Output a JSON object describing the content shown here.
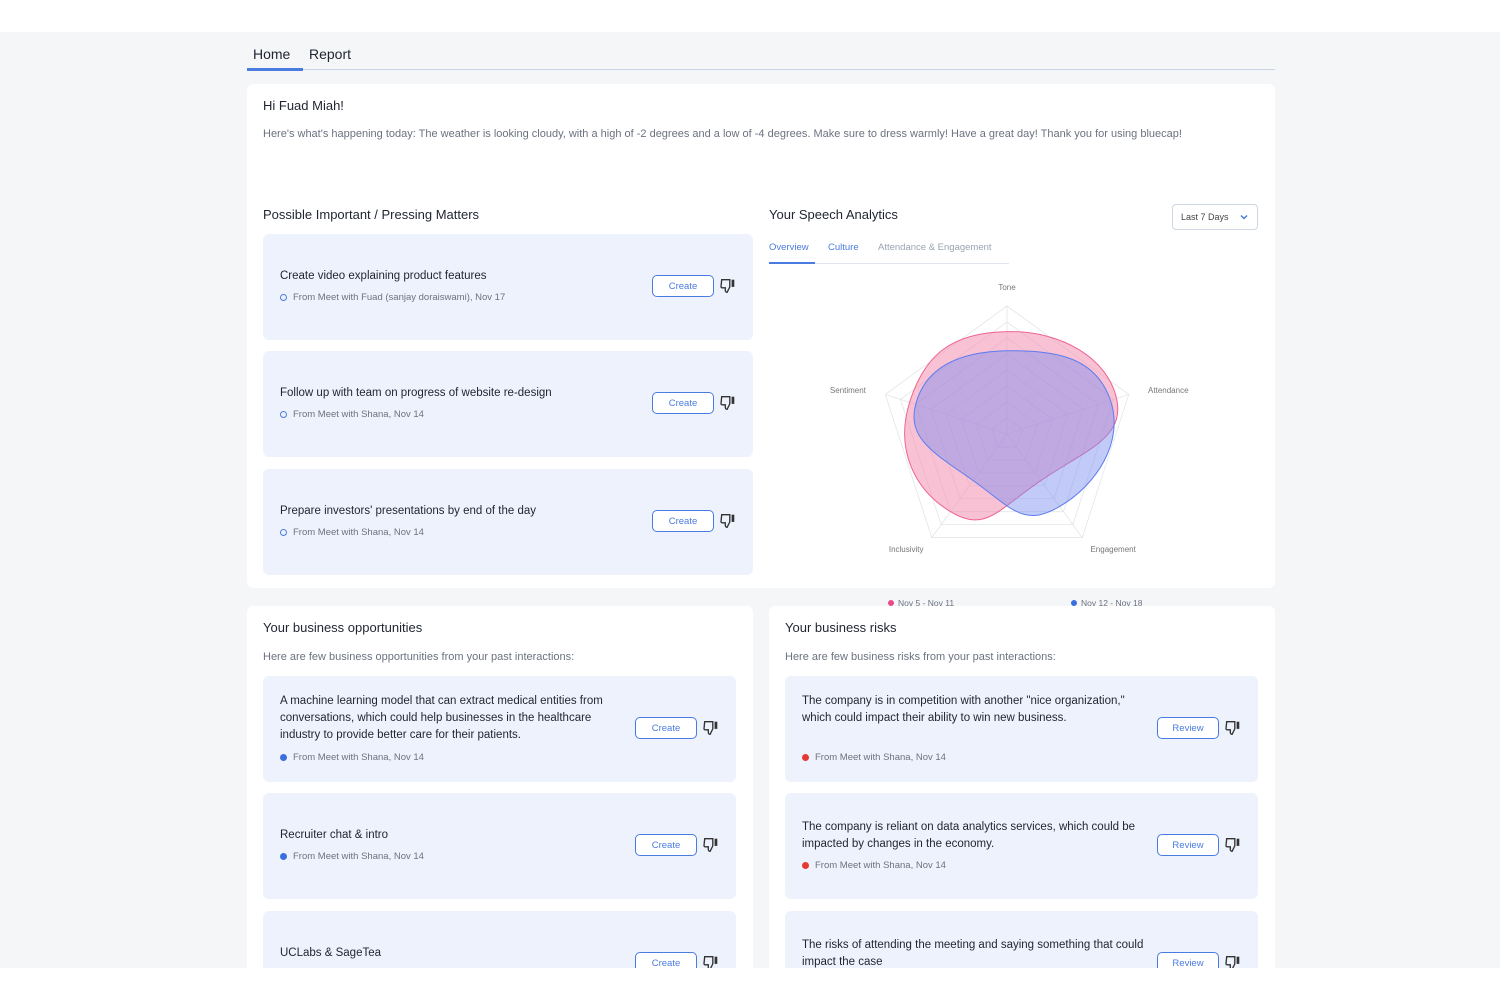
{
  "nav": {
    "tabs": [
      "Home",
      "Report"
    ]
  },
  "greeting": "Hi Fuad Miah!",
  "intro": "Here's what's happening today: The weather is looking cloudy, with a high of -2 degrees and a low of -4 degrees. Make sure to dress warmly! Have a great day! Thank you for using bluecap!",
  "pressing": {
    "title": "Possible Important / Pressing Matters",
    "items": [
      {
        "text": "Create video explaining product features",
        "source": "From Meet with Fuad (sanjay doraiswami), Nov 17",
        "button": "Create"
      },
      {
        "text": "Follow up with team on progress of website re-design",
        "source": "From Meet with Shana, Nov 14",
        "button": "Create"
      },
      {
        "text": "Prepare investors' presentations by end of the day",
        "source": "From Meet with Shana, Nov 14",
        "button": "Create"
      }
    ]
  },
  "speech": {
    "title": "Your Speech Analytics",
    "range": "Last 7 Days",
    "tabs": [
      "Overview",
      "Culture",
      "Attendance & Engagement"
    ],
    "chart_data": {
      "type": "radar",
      "axes": [
        "Tone",
        "Attendance",
        "Engagement",
        "Inclusivity",
        "Sentiment"
      ],
      "series": [
        {
          "name": "Nov 5 - Nov 11",
          "color": "#f48fb1",
          "values": [
            0.8,
            0.9,
            0.45,
            0.75,
            0.8
          ]
        },
        {
          "name": "Nov 12 - Nov 18",
          "color": "#5c7cf0",
          "values": [
            0.65,
            0.85,
            0.7,
            0.45,
            0.75
          ]
        }
      ]
    }
  },
  "opportunities": {
    "title": "Your business opportunities",
    "subtitle": "Here are few business opportunities from your past interactions:",
    "items": [
      {
        "text": "A machine learning model that can extract medical entities from conversations, which could help businesses in the healthcare industry to provide better care for their patients.",
        "source": "From Meet with Shana, Nov 14",
        "button": "Create"
      },
      {
        "text": "Recruiter chat & intro",
        "source": "From Meet with Shana, Nov 14",
        "button": "Create"
      },
      {
        "text": "UCLabs & SageTea",
        "source": "",
        "button": "Create"
      }
    ]
  },
  "risks": {
    "title": "Your business risks",
    "subtitle": "Here are few business risks from your past interactions:",
    "items": [
      {
        "text": "The company is in competition with another \"nice organization,\" which could impact their ability to win new business.",
        "source": "From Meet with Shana, Nov 14",
        "button": "Review"
      },
      {
        "text": "The company is reliant on data analytics services, which could be impacted by changes in the economy.",
        "source": "From Meet with Shana, Nov 14",
        "button": "Review"
      },
      {
        "text": "The risks of attending the meeting and saying something that could impact the case",
        "source": "",
        "button": "Review"
      }
    ]
  },
  "colors": {
    "accent": "#4a7be0",
    "card_bg": "#eef2fc",
    "risk": "#e53935"
  }
}
